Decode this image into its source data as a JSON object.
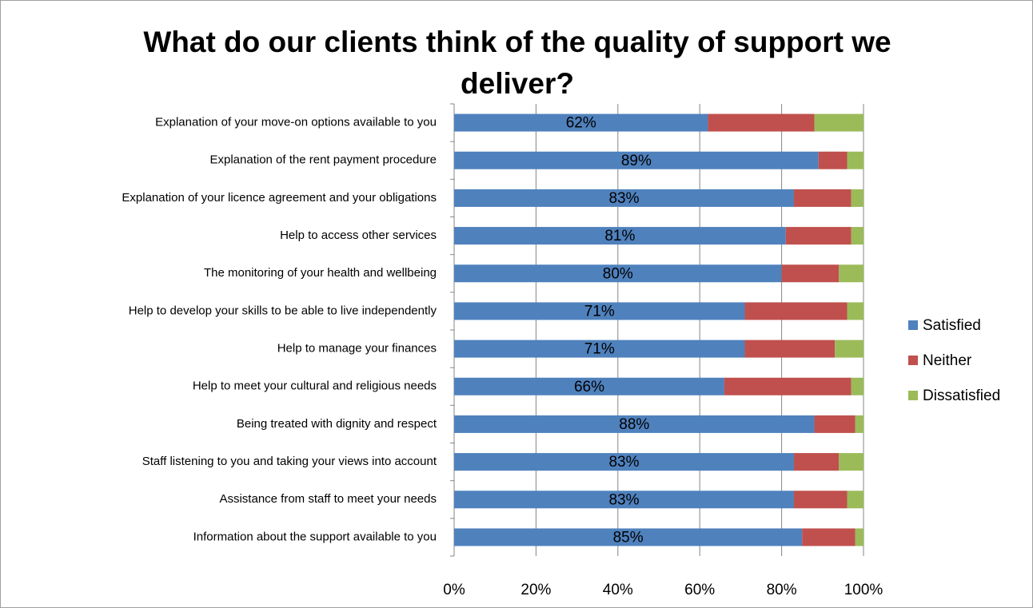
{
  "chart_data": {
    "type": "stacked-barh",
    "title": "What do our clients think of the quality of support we deliver?",
    "categories": [
      "Explanation of your move-on options available to you",
      "Explanation of the rent payment procedure",
      "Explanation of your licence agreement and your obligations",
      "Help to access other services",
      "The monitoring of your health and wellbeing",
      "Help to develop your skills to be able to live independently",
      "Help to manage your finances",
      "Help to meet your cultural and religious needs",
      "Being treated with dignity and respect",
      "Staff listening to you and taking your views into account",
      "Assistance from staff to meet your needs",
      "Information about the support available to you"
    ],
    "series": [
      {
        "name": "Satisfied",
        "color": "#4f81bd",
        "values": [
          62,
          89,
          83,
          81,
          80,
          71,
          71,
          66,
          88,
          83,
          83,
          85
        ],
        "value_labels": [
          "62%",
          "89%",
          "83%",
          "81%",
          "80%",
          "71%",
          "71%",
          "66%",
          "88%",
          "83%",
          "83%",
          "85%"
        ]
      },
      {
        "name": "Neither",
        "color": "#c0504d",
        "values": [
          26,
          7,
          14,
          16,
          14,
          25,
          22,
          31,
          10,
          11,
          13,
          13
        ]
      },
      {
        "name": "Dissatisfied",
        "color": "#9bbb59",
        "values": [
          12,
          4,
          3,
          3,
          6,
          4,
          7,
          3,
          2,
          6,
          4,
          2
        ]
      }
    ],
    "xlim": [
      0,
      100
    ],
    "xticks": [
      {
        "value": 0,
        "label": "0%"
      },
      {
        "value": 20,
        "label": "20%"
      },
      {
        "value": 40,
        "label": "40%"
      },
      {
        "value": 60,
        "label": "60%"
      },
      {
        "value": 80,
        "label": "80%"
      },
      {
        "value": 100,
        "label": "100%"
      }
    ],
    "grid": true,
    "legend": "right"
  }
}
